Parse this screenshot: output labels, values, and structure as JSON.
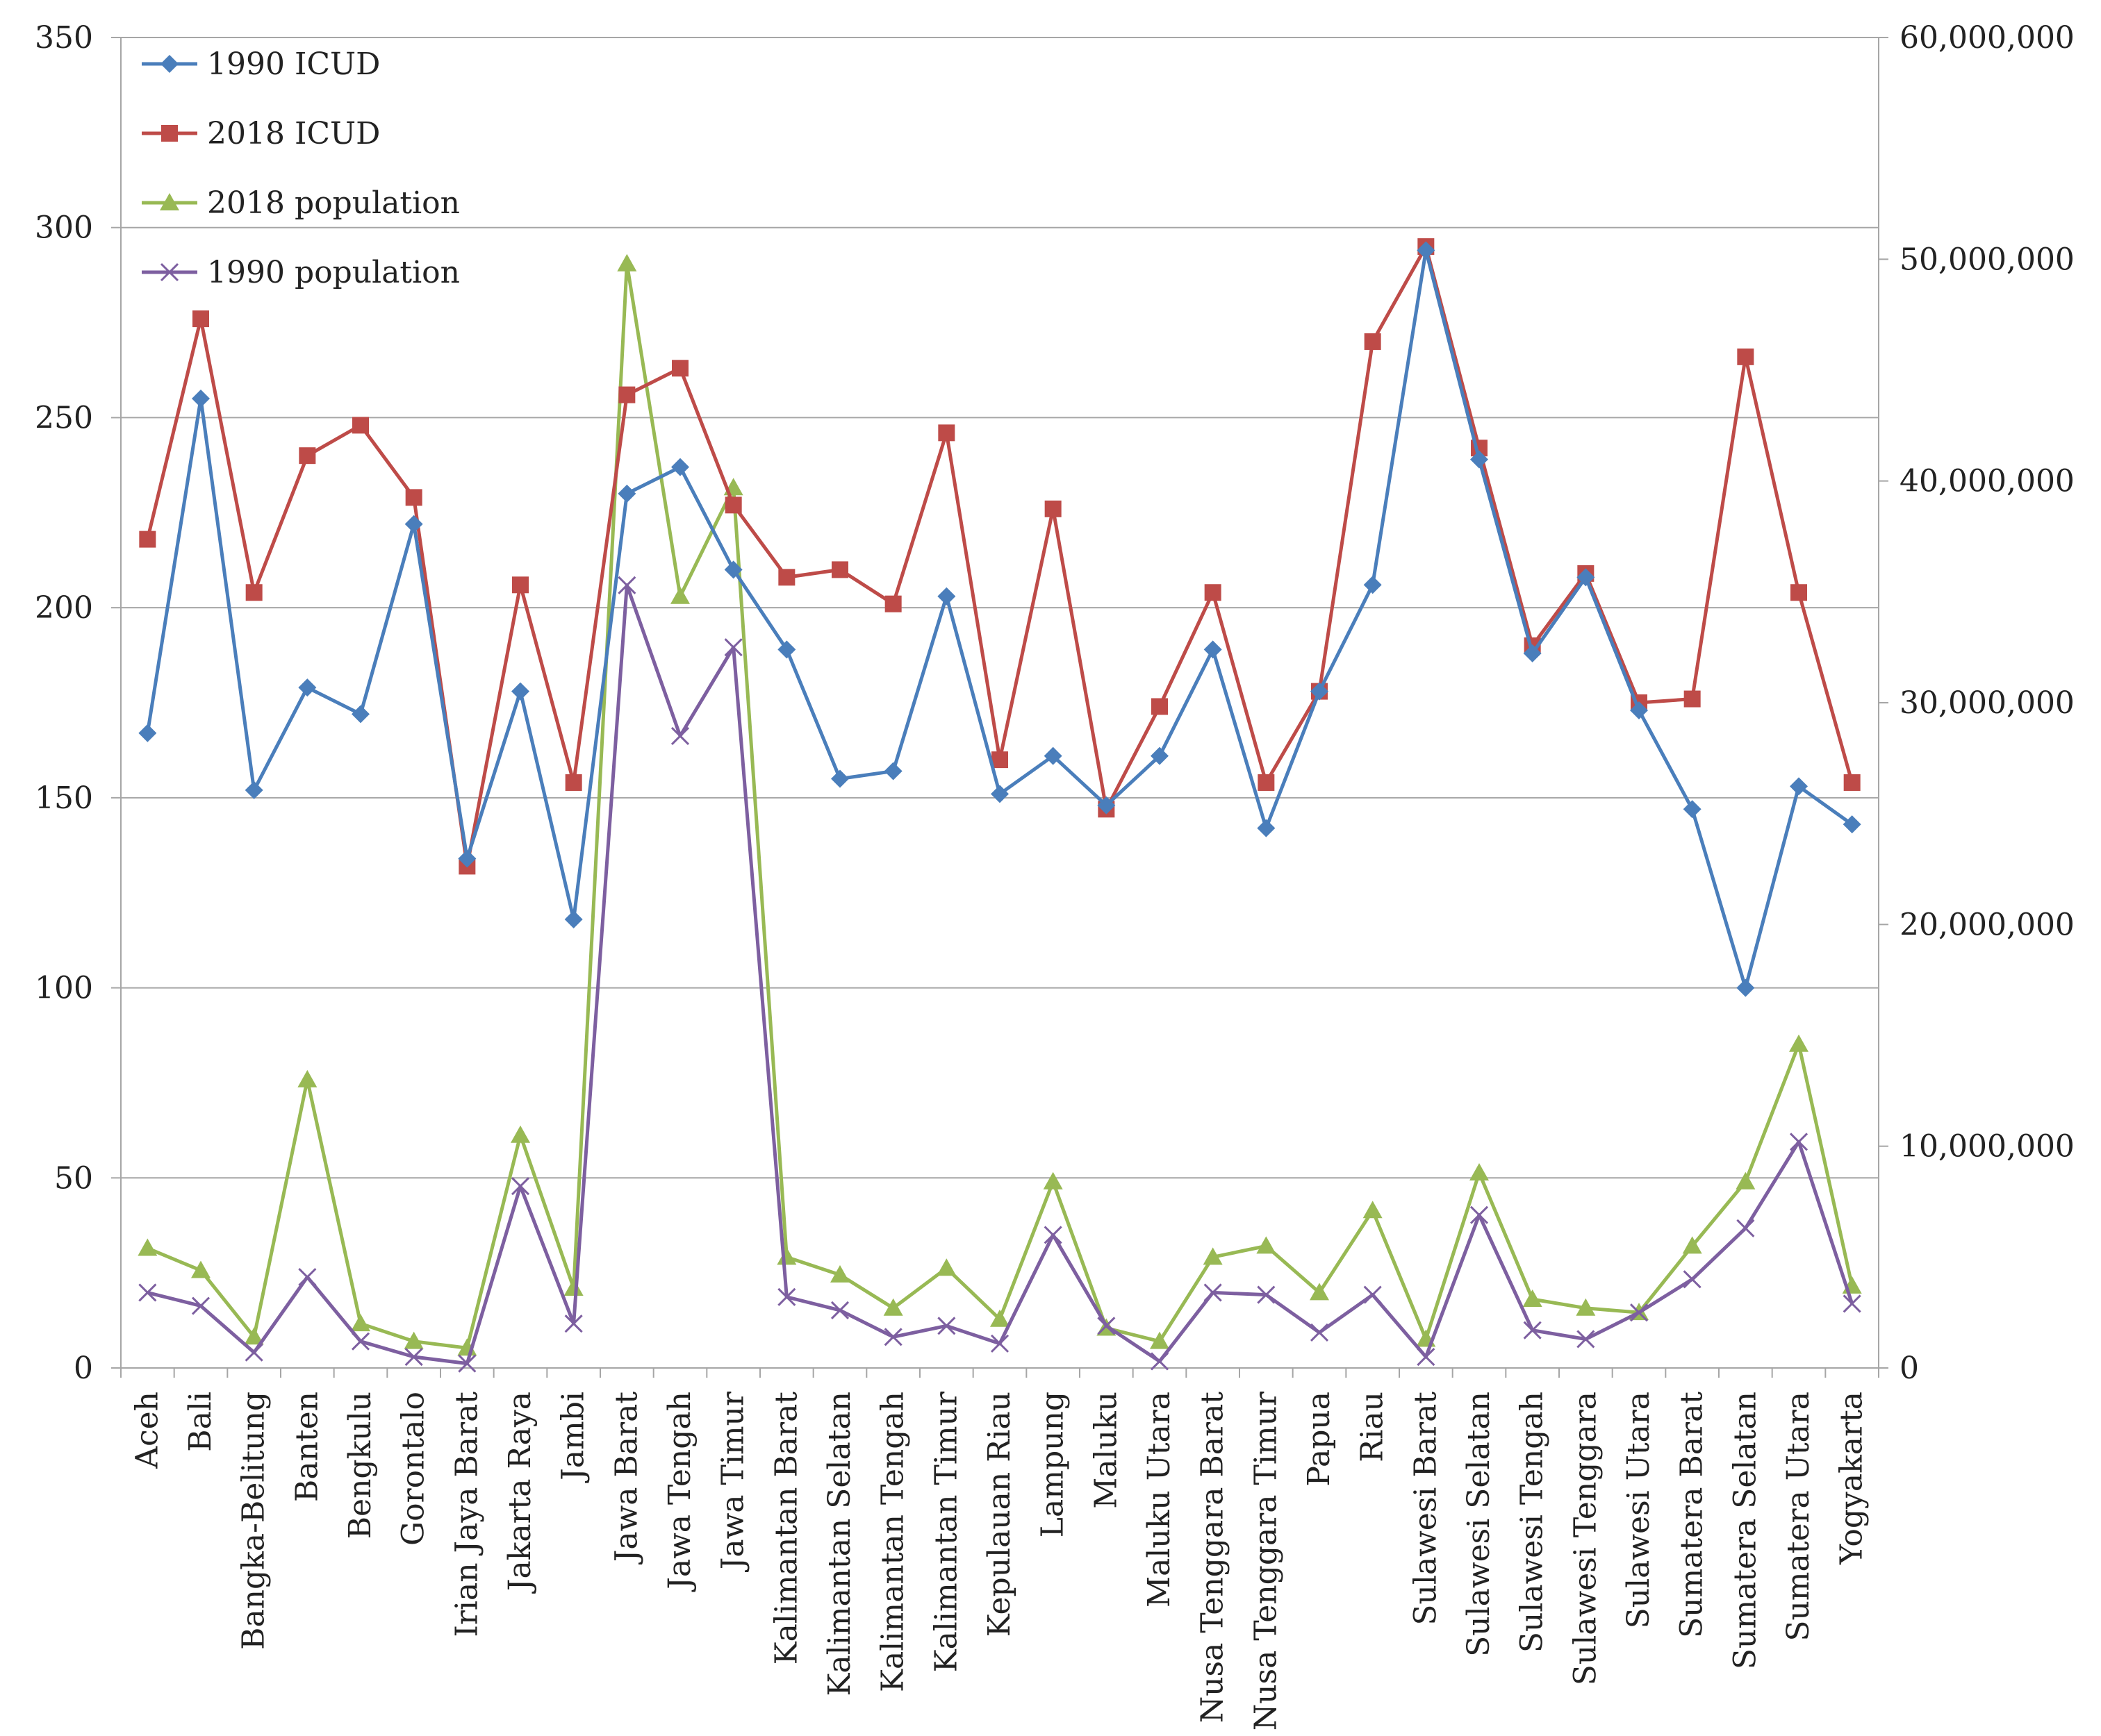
{
  "chart_data": {
    "type": "line",
    "title": "",
    "xlabel": "",
    "ylabel": "",
    "y2label": "",
    "ylim": [
      0,
      350
    ],
    "y2lim": [
      0,
      60000000
    ],
    "yticks": [
      "0",
      "50",
      "100",
      "150",
      "200",
      "250",
      "300",
      "350"
    ],
    "y2ticks": [
      "0",
      "10,000,000",
      "20,000,000",
      "30,000,000",
      "40,000,000",
      "50,000,000",
      "60,000,000"
    ],
    "grid": true,
    "legend_position": "top-left",
    "categories": [
      "Aceh",
      "Bali",
      "Bangka-Belitung",
      "Banten",
      "Bengkulu",
      "Gorontalo",
      "Irian Jaya Barat",
      "Jakarta Raya",
      "Jambi",
      "Jawa Barat",
      "Jawa Tengah",
      "Jawa Timur",
      "Kalimantan Barat",
      "Kalimantan Selatan",
      "Kalimantan Tengah",
      "Kalimantan Timur",
      "Kepulauan Riau",
      "Lampung",
      "Maluku",
      "Maluku Utara",
      "Nusa Tenggara Barat",
      "Nusa Tenggara Timur",
      "Papua",
      "Riau",
      "Sulawesi Barat",
      "Sulawesi Selatan",
      "Sulawesi Tengah",
      "Sulawesi Tenggara",
      "Sulawesi Utara",
      "Sumatera Barat",
      "Sumatera Selatan",
      "Sumatera Utara",
      "Yogyakarta"
    ],
    "series": [
      {
        "name": "1990 ICUD",
        "axis": "left",
        "marker": "diamond",
        "color": "#4a7ebb",
        "values": [
          167,
          255,
          152,
          179,
          172,
          222,
          134,
          178,
          118,
          230,
          237,
          210,
          189,
          155,
          157,
          203,
          151,
          161,
          148,
          161,
          189,
          142,
          178,
          206,
          294,
          239,
          188,
          208,
          173,
          147,
          100,
          153,
          143
        ]
      },
      {
        "name": "2018 ICUD",
        "axis": "left",
        "marker": "square",
        "color": "#be4b48",
        "values": [
          218,
          276,
          204,
          240,
          248,
          229,
          132,
          206,
          154,
          256,
          263,
          227,
          208,
          210,
          201,
          246,
          160,
          226,
          147,
          174,
          204,
          154,
          178,
          270,
          295,
          242,
          190,
          209,
          175,
          176,
          266,
          204,
          154
        ]
      },
      {
        "name": "2018 population",
        "axis": "right",
        "marker": "triangle",
        "color": "#98b954",
        "values": [
          5400000,
          4400000,
          1400000,
          13000000,
          2000000,
          1200000,
          900000,
          10500000,
          3600000,
          49800000,
          34800000,
          39700000,
          5000000,
          4200000,
          2700000,
          4500000,
          2200000,
          8400000,
          1800000,
          1200000,
          5000000,
          5500000,
          3400000,
          7100000,
          1300000,
          8800000,
          3100000,
          2700000,
          2500000,
          5500000,
          8400000,
          14600000,
          3700000
        ]
      },
      {
        "name": "1990 population",
        "axis": "right",
        "marker": "x",
        "color": "#7d5fa0",
        "values": [
          3400000,
          2800000,
          700000,
          4100000,
          1200000,
          500000,
          200000,
          8200000,
          2000000,
          35300000,
          28500000,
          32500000,
          3200000,
          2600000,
          1400000,
          1900000,
          1100000,
          6000000,
          1900000,
          300000,
          3400000,
          3300000,
          1600000,
          3300000,
          500000,
          6900000,
          1700000,
          1300000,
          2500000,
          4000000,
          6300000,
          10200000,
          2900000
        ]
      }
    ]
  }
}
